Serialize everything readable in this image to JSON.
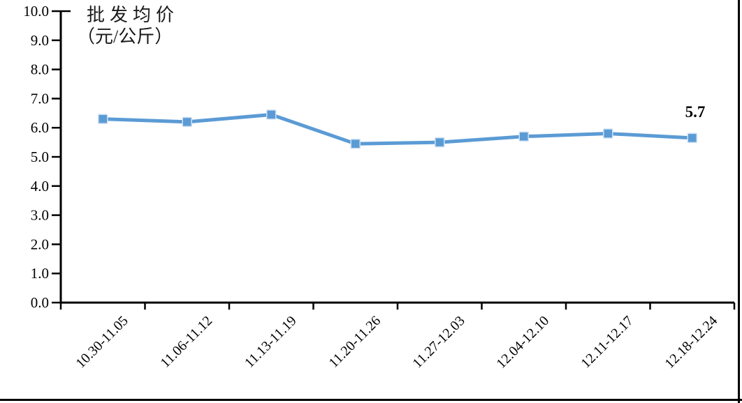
{
  "page": {
    "background_color": "#ffffff",
    "border_color": "#000000"
  },
  "chart_data": {
    "type": "line",
    "title": "批发均价",
    "unit_label": "（元/公斤）",
    "categories": [
      "10.30-11.05",
      "11.06-11.12",
      "11.13-11.19",
      "11.20-11.26",
      "11.27-12.03",
      "12.04-12.10",
      "12.11-12.17",
      "12.18-12.24"
    ],
    "values": [
      6.3,
      6.2,
      6.45,
      5.45,
      5.5,
      5.7,
      5.8,
      5.65
    ],
    "last_point_label": "5.7",
    "ylim": [
      0,
      10
    ],
    "ytick_interval": 1.0,
    "ytick_labels": [
      "0.0",
      "1.0",
      "2.0",
      "3.0",
      "4.0",
      "5.0",
      "6.0",
      "7.0",
      "8.0",
      "9.0",
      "10.0"
    ],
    "xlabel": "",
    "ylabel": "批发均价（元/公斤）",
    "grid": false,
    "legend_position": "none",
    "line_color": "#5b9bd5",
    "marker_style": "square",
    "marker_color": "#5b9bd5",
    "marker_halo_color": "#cfe0f3",
    "axis_color": "#000000",
    "text_color": "#000000",
    "label_rotation_deg": 45
  }
}
